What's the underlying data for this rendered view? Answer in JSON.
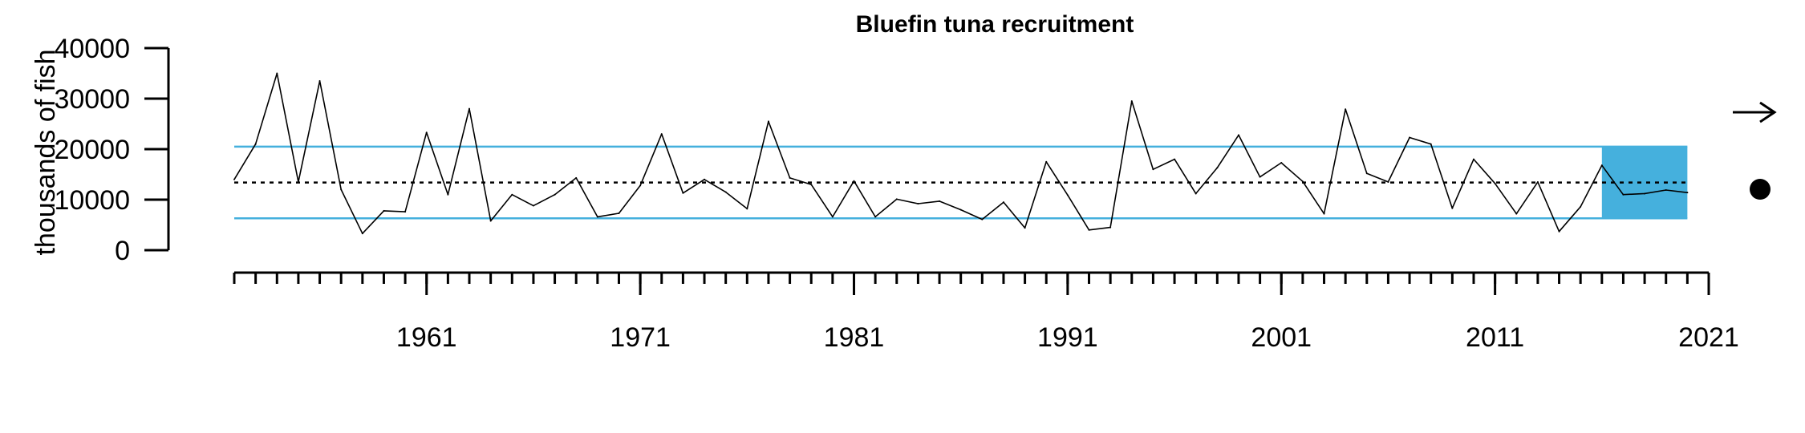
{
  "chart_data": {
    "type": "line",
    "title": "Bluefin tuna recruitment",
    "xlabel": "",
    "ylabel": "thousands of fish",
    "xlim": [
      1952,
      2021
    ],
    "ylim": [
      0,
      40000
    ],
    "x_ticks": [
      1961,
      1971,
      1981,
      1991,
      2001,
      2011,
      2021
    ],
    "y_ticks": [
      0,
      10000,
      20000,
      30000,
      40000
    ],
    "x_minor_step": 1,
    "reference_lines": {
      "mean": 13400,
      "upper": 20500,
      "lower": 6300
    },
    "highlight_region": {
      "x_start": 2016,
      "x_end": 2020,
      "color": "#45b0dd"
    },
    "colors": {
      "series": "#000000",
      "bands": "#45b0dd",
      "mean": "#000000"
    },
    "symbols": {
      "trend": "arrow-right",
      "status": "filled-circle"
    },
    "series": [
      {
        "x": [
          1952,
          1953,
          1954,
          1955,
          1956,
          1957,
          1958,
          1959,
          1960,
          1961,
          1962,
          1963,
          1964,
          1965,
          1966,
          1967,
          1968,
          1969,
          1970,
          1971,
          1972,
          1973,
          1974,
          1975,
          1976,
          1977,
          1978,
          1979,
          1980,
          1981,
          1982,
          1983,
          1984,
          1985,
          1986,
          1987,
          1988,
          1989,
          1990,
          1991,
          1992,
          1993,
          1994,
          1995,
          1996,
          1997,
          1998,
          1999,
          2000,
          2001,
          2002,
          2003,
          2004,
          2005,
          2006,
          2007,
          2008,
          2009,
          2010,
          2011,
          2012,
          2013,
          2014,
          2015,
          2016,
          2017,
          2018,
          2019,
          2020
        ],
        "values": [
          14000,
          21000,
          35000,
          13500,
          33500,
          12000,
          3300,
          7800,
          7600,
          23300,
          11000,
          28000,
          5800,
          11000,
          8800,
          11000,
          14300,
          6600,
          7300,
          12800,
          23000,
          11300,
          14000,
          11500,
          8200,
          25500,
          14300,
          13000,
          6600,
          13700,
          6600,
          10100,
          9200,
          9700,
          8000,
          6100,
          9500,
          4400,
          17500,
          10900,
          4000,
          4500,
          29500,
          16000,
          18000,
          11200,
          16300,
          22800,
          14500,
          17300,
          13600,
          7200,
          27900,
          15200,
          13500,
          22300,
          21000,
          8300,
          18000,
          13200,
          7200,
          13500,
          3700,
          8600,
          16800,
          11000,
          11200,
          11900,
          11400
        ]
      }
    ]
  }
}
